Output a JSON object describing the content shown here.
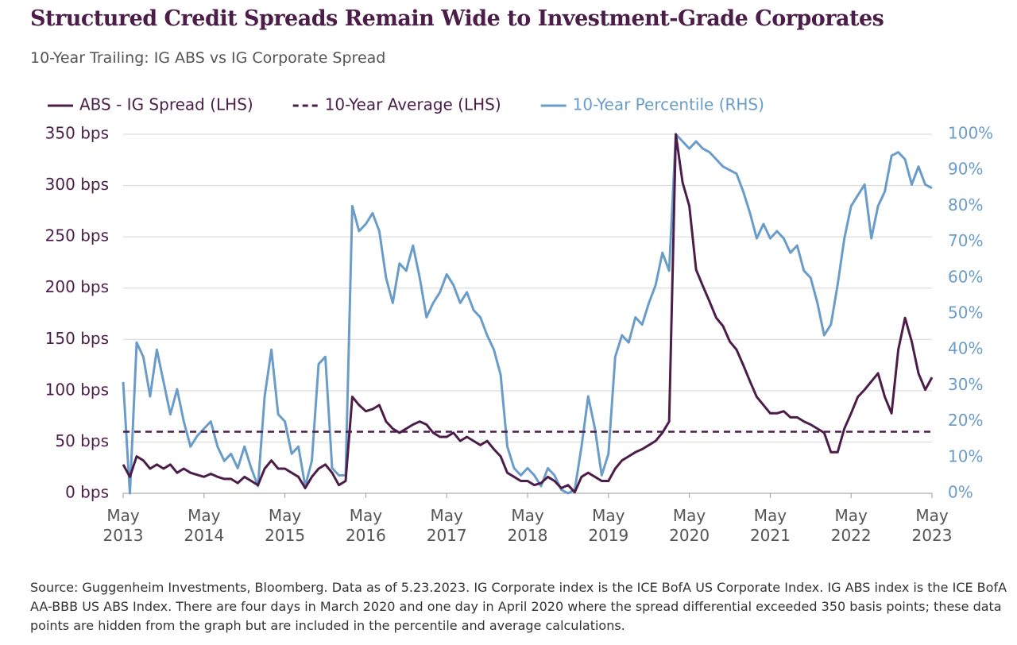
{
  "chart_data": {
    "type": "line",
    "title": "Structured Credit Spreads Remain Wide to Investment-Grade Corporates",
    "subtitle": "10-Year Trailing: IG ABS vs IG Corporate Spread",
    "footnote": "Source: Guggenheim Investments, Bloomberg. Data as of 5.23.2023. IG Corporate index is the ICE BofA US Corporate Index. IG ABS index is the ICE BofA AA-BBB US ABS Index. There are four days in March 2020 and one day in April 2020 where the spread differential exceeded 350 basis points; these data points are hidden from the graph but are included in the percentile and average calculations.",
    "xlim": [
      "2013-05",
      "2023-05"
    ],
    "xticks": [
      {
        "value": "2013-05",
        "label": "May 2013"
      },
      {
        "value": "2014-05",
        "label": "May 2014"
      },
      {
        "value": "2015-05",
        "label": "May 2015"
      },
      {
        "value": "2016-05",
        "label": "May 2016"
      },
      {
        "value": "2017-05",
        "label": "May 2017"
      },
      {
        "value": "2018-05",
        "label": "May 2018"
      },
      {
        "value": "2019-05",
        "label": "May 2019"
      },
      {
        "value": "2020-05",
        "label": "May 2020"
      },
      {
        "value": "2021-05",
        "label": "May 2021"
      },
      {
        "value": "2022-05",
        "label": "May 2022"
      },
      {
        "value": "2023-05",
        "label": "May 2023"
      }
    ],
    "ylim": [
      0,
      350
    ],
    "yticks": [
      {
        "value": 0,
        "label": "0 bps"
      },
      {
        "value": 50,
        "label": "50 bps"
      },
      {
        "value": 100,
        "label": "100 bps"
      },
      {
        "value": 150,
        "label": "150 bps"
      },
      {
        "value": 200,
        "label": "200 bps"
      },
      {
        "value": 250,
        "label": "250 bps"
      },
      {
        "value": 300,
        "label": "300 bps"
      },
      {
        "value": 350,
        "label": "350 bps"
      }
    ],
    "y2lim": [
      0,
      100
    ],
    "y2ticks": [
      {
        "value": 0,
        "label": "0%"
      },
      {
        "value": 10,
        "label": "10%"
      },
      {
        "value": 20,
        "label": "20%"
      },
      {
        "value": 30,
        "label": "30%"
      },
      {
        "value": 40,
        "label": "40%"
      },
      {
        "value": 50,
        "label": "50%"
      },
      {
        "value": 60,
        "label": "60%"
      },
      {
        "value": 70,
        "label": "70%"
      },
      {
        "value": 80,
        "label": "80%"
      },
      {
        "value": 90,
        "label": "90%"
      },
      {
        "value": 100,
        "label": "100%"
      }
    ],
    "grid": true,
    "legend": "top",
    "x": [
      "2013-05",
      "2013-06",
      "2013-07",
      "2013-08",
      "2013-09",
      "2013-10",
      "2013-11",
      "2013-12",
      "2014-01",
      "2014-02",
      "2014-03",
      "2014-04",
      "2014-05",
      "2014-06",
      "2014-07",
      "2014-08",
      "2014-09",
      "2014-10",
      "2014-11",
      "2014-12",
      "2015-01",
      "2015-02",
      "2015-03",
      "2015-04",
      "2015-05",
      "2015-06",
      "2015-07",
      "2015-08",
      "2015-09",
      "2015-10",
      "2015-11",
      "2015-12",
      "2016-01",
      "2016-02",
      "2016-03",
      "2016-04",
      "2016-05",
      "2016-06",
      "2016-07",
      "2016-08",
      "2016-09",
      "2016-10",
      "2016-11",
      "2016-12",
      "2017-01",
      "2017-02",
      "2017-03",
      "2017-04",
      "2017-05",
      "2017-06",
      "2017-07",
      "2017-08",
      "2017-09",
      "2017-10",
      "2017-11",
      "2017-12",
      "2018-01",
      "2018-02",
      "2018-03",
      "2018-04",
      "2018-05",
      "2018-06",
      "2018-07",
      "2018-08",
      "2018-09",
      "2018-10",
      "2018-11",
      "2018-12",
      "2019-01",
      "2019-02",
      "2019-03",
      "2019-04",
      "2019-05",
      "2019-06",
      "2019-07",
      "2019-08",
      "2019-09",
      "2019-10",
      "2019-11",
      "2019-12",
      "2020-01",
      "2020-02",
      "2020-03",
      "2020-04",
      "2020-05",
      "2020-06",
      "2020-07",
      "2020-08",
      "2020-09",
      "2020-10",
      "2020-11",
      "2020-12",
      "2021-01",
      "2021-02",
      "2021-03",
      "2021-04",
      "2021-05",
      "2021-06",
      "2021-07",
      "2021-08",
      "2021-09",
      "2021-10",
      "2021-11",
      "2021-12",
      "2022-01",
      "2022-02",
      "2022-03",
      "2022-04",
      "2022-05",
      "2022-06",
      "2022-07",
      "2022-08",
      "2022-09",
      "2022-10",
      "2022-11",
      "2022-12",
      "2023-01",
      "2023-02",
      "2023-03",
      "2023-04",
      "2023-05"
    ],
    "series": [
      {
        "name": "ABS - IG Spread (LHS)",
        "color": "#4b1d48",
        "axis": "y",
        "values": [
          28,
          16,
          36,
          32,
          24,
          28,
          24,
          28,
          20,
          24,
          20,
          18,
          16,
          19,
          16,
          14,
          14,
          10,
          16,
          12,
          8,
          24,
          32,
          24,
          24,
          20,
          16,
          5,
          16,
          24,
          28,
          20,
          8,
          12,
          94,
          86,
          80,
          82,
          86,
          70,
          63,
          59,
          63,
          67,
          70,
          67,
          59,
          55,
          55,
          59,
          51,
          55,
          51,
          47,
          51,
          43,
          36,
          20,
          16,
          12,
          12,
          8,
          10,
          16,
          12,
          5,
          8,
          1,
          16,
          20,
          16,
          12,
          12,
          24,
          32,
          36,
          40,
          43,
          47,
          51,
          59,
          70,
          350,
          303,
          280,
          218,
          202,
          187,
          171,
          163,
          148,
          140,
          125,
          109,
          94,
          86,
          78,
          78,
          80,
          74,
          74,
          70,
          67,
          63,
          59,
          40,
          40,
          63,
          78,
          94,
          101,
          109,
          117,
          94,
          78,
          140,
          171,
          148,
          117,
          101,
          113
        ]
      },
      {
        "name": "10-Year Average (LHS)",
        "color": "#4b1d48",
        "axis": "y",
        "dash": true,
        "x": [
          "2013-05",
          "2023-05"
        ],
        "values": [
          60,
          60
        ]
      },
      {
        "name": "10-Year Percentile (RHS)",
        "color": "#6a9cc9",
        "axis": "y2",
        "values": [
          31,
          0,
          42,
          38,
          27,
          40,
          31,
          22,
          29,
          20,
          13,
          16,
          18,
          20,
          13,
          9,
          11,
          7,
          13,
          7,
          2,
          27,
          40,
          22,
          20,
          11,
          13,
          2,
          9,
          36,
          38,
          7,
          5,
          5,
          80,
          73,
          75,
          78,
          73,
          60,
          53,
          64,
          62,
          69,
          60,
          49,
          53,
          56,
          61,
          58,
          53,
          56,
          51,
          49,
          44,
          40,
          33,
          13,
          7,
          5,
          7,
          5,
          2,
          7,
          5,
          1,
          0,
          1,
          13,
          27,
          18,
          5,
          11,
          38,
          44,
          42,
          49,
          47,
          53,
          58,
          67,
          62,
          100,
          98,
          96,
          98,
          96,
          95,
          93,
          91,
          90,
          89,
          84,
          78,
          71,
          75,
          71,
          73,
          71,
          67,
          69,
          62,
          60,
          53,
          44,
          47,
          58,
          71,
          80,
          83,
          86,
          71,
          80,
          84,
          94,
          95,
          93,
          86,
          91,
          86,
          85
        ]
      }
    ]
  }
}
